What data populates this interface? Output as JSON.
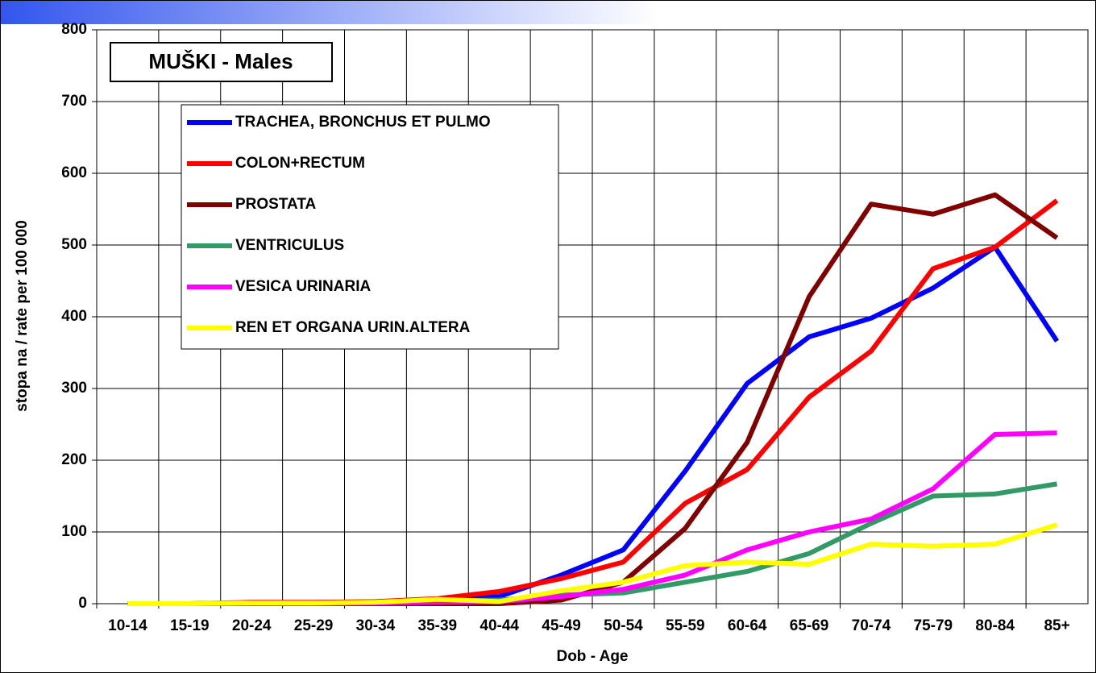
{
  "chart_data": {
    "type": "line",
    "title": "MUŠKI - Males",
    "x_label": "Dob - Age",
    "y_label": "stopa na / rate per 100 000",
    "categories": [
      "10-14",
      "15-19",
      "20-24",
      "25-29",
      "30-34",
      "35-39",
      "40-44",
      "45-49",
      "50-54",
      "55-59",
      "60-64",
      "65-69",
      "70-74",
      "75-79",
      "80-84",
      "85+"
    ],
    "ylim": [
      0,
      800
    ],
    "yticks": [
      0,
      100,
      200,
      300,
      400,
      500,
      600,
      700,
      800
    ],
    "grid": true,
    "series": [
      {
        "name": "TRACHEA, BRONCHUS ET PULMO",
        "color": "#0000ff",
        "values": [
          0,
          0,
          1,
          1,
          2,
          5,
          10,
          40,
          75,
          185,
          307,
          372,
          398,
          440,
          497,
          366
        ]
      },
      {
        "name": "COLON+RECTUM",
        "color": "#ff0000",
        "values": [
          0,
          0,
          2,
          2,
          3,
          7,
          17,
          35,
          58,
          140,
          187,
          288,
          352,
          467,
          497,
          562
        ]
      },
      {
        "name": "PROSTATA",
        "color": "#800000",
        "values": [
          0,
          0,
          0,
          0,
          0,
          0,
          0,
          5,
          30,
          105,
          225,
          428,
          557,
          543,
          570,
          510
        ]
      },
      {
        "name": "VENTRICULUS",
        "color": "#339966",
        "values": [
          0,
          0,
          1,
          1,
          2,
          4,
          5,
          12,
          15,
          30,
          45,
          70,
          112,
          150,
          153,
          167
        ]
      },
      {
        "name": "VESICA URINARIA",
        "color": "#ff00ff",
        "values": [
          0,
          0,
          0,
          0,
          1,
          2,
          3,
          10,
          20,
          40,
          75,
          100,
          118,
          160,
          236,
          238
        ]
      },
      {
        "name": "REN ET ORGANA URIN.ALTERA",
        "color": "#ffff00",
        "values": [
          0,
          0,
          1,
          1,
          2,
          6,
          3,
          18,
          30,
          53,
          58,
          55,
          83,
          80,
          83,
          110
        ]
      }
    ]
  }
}
